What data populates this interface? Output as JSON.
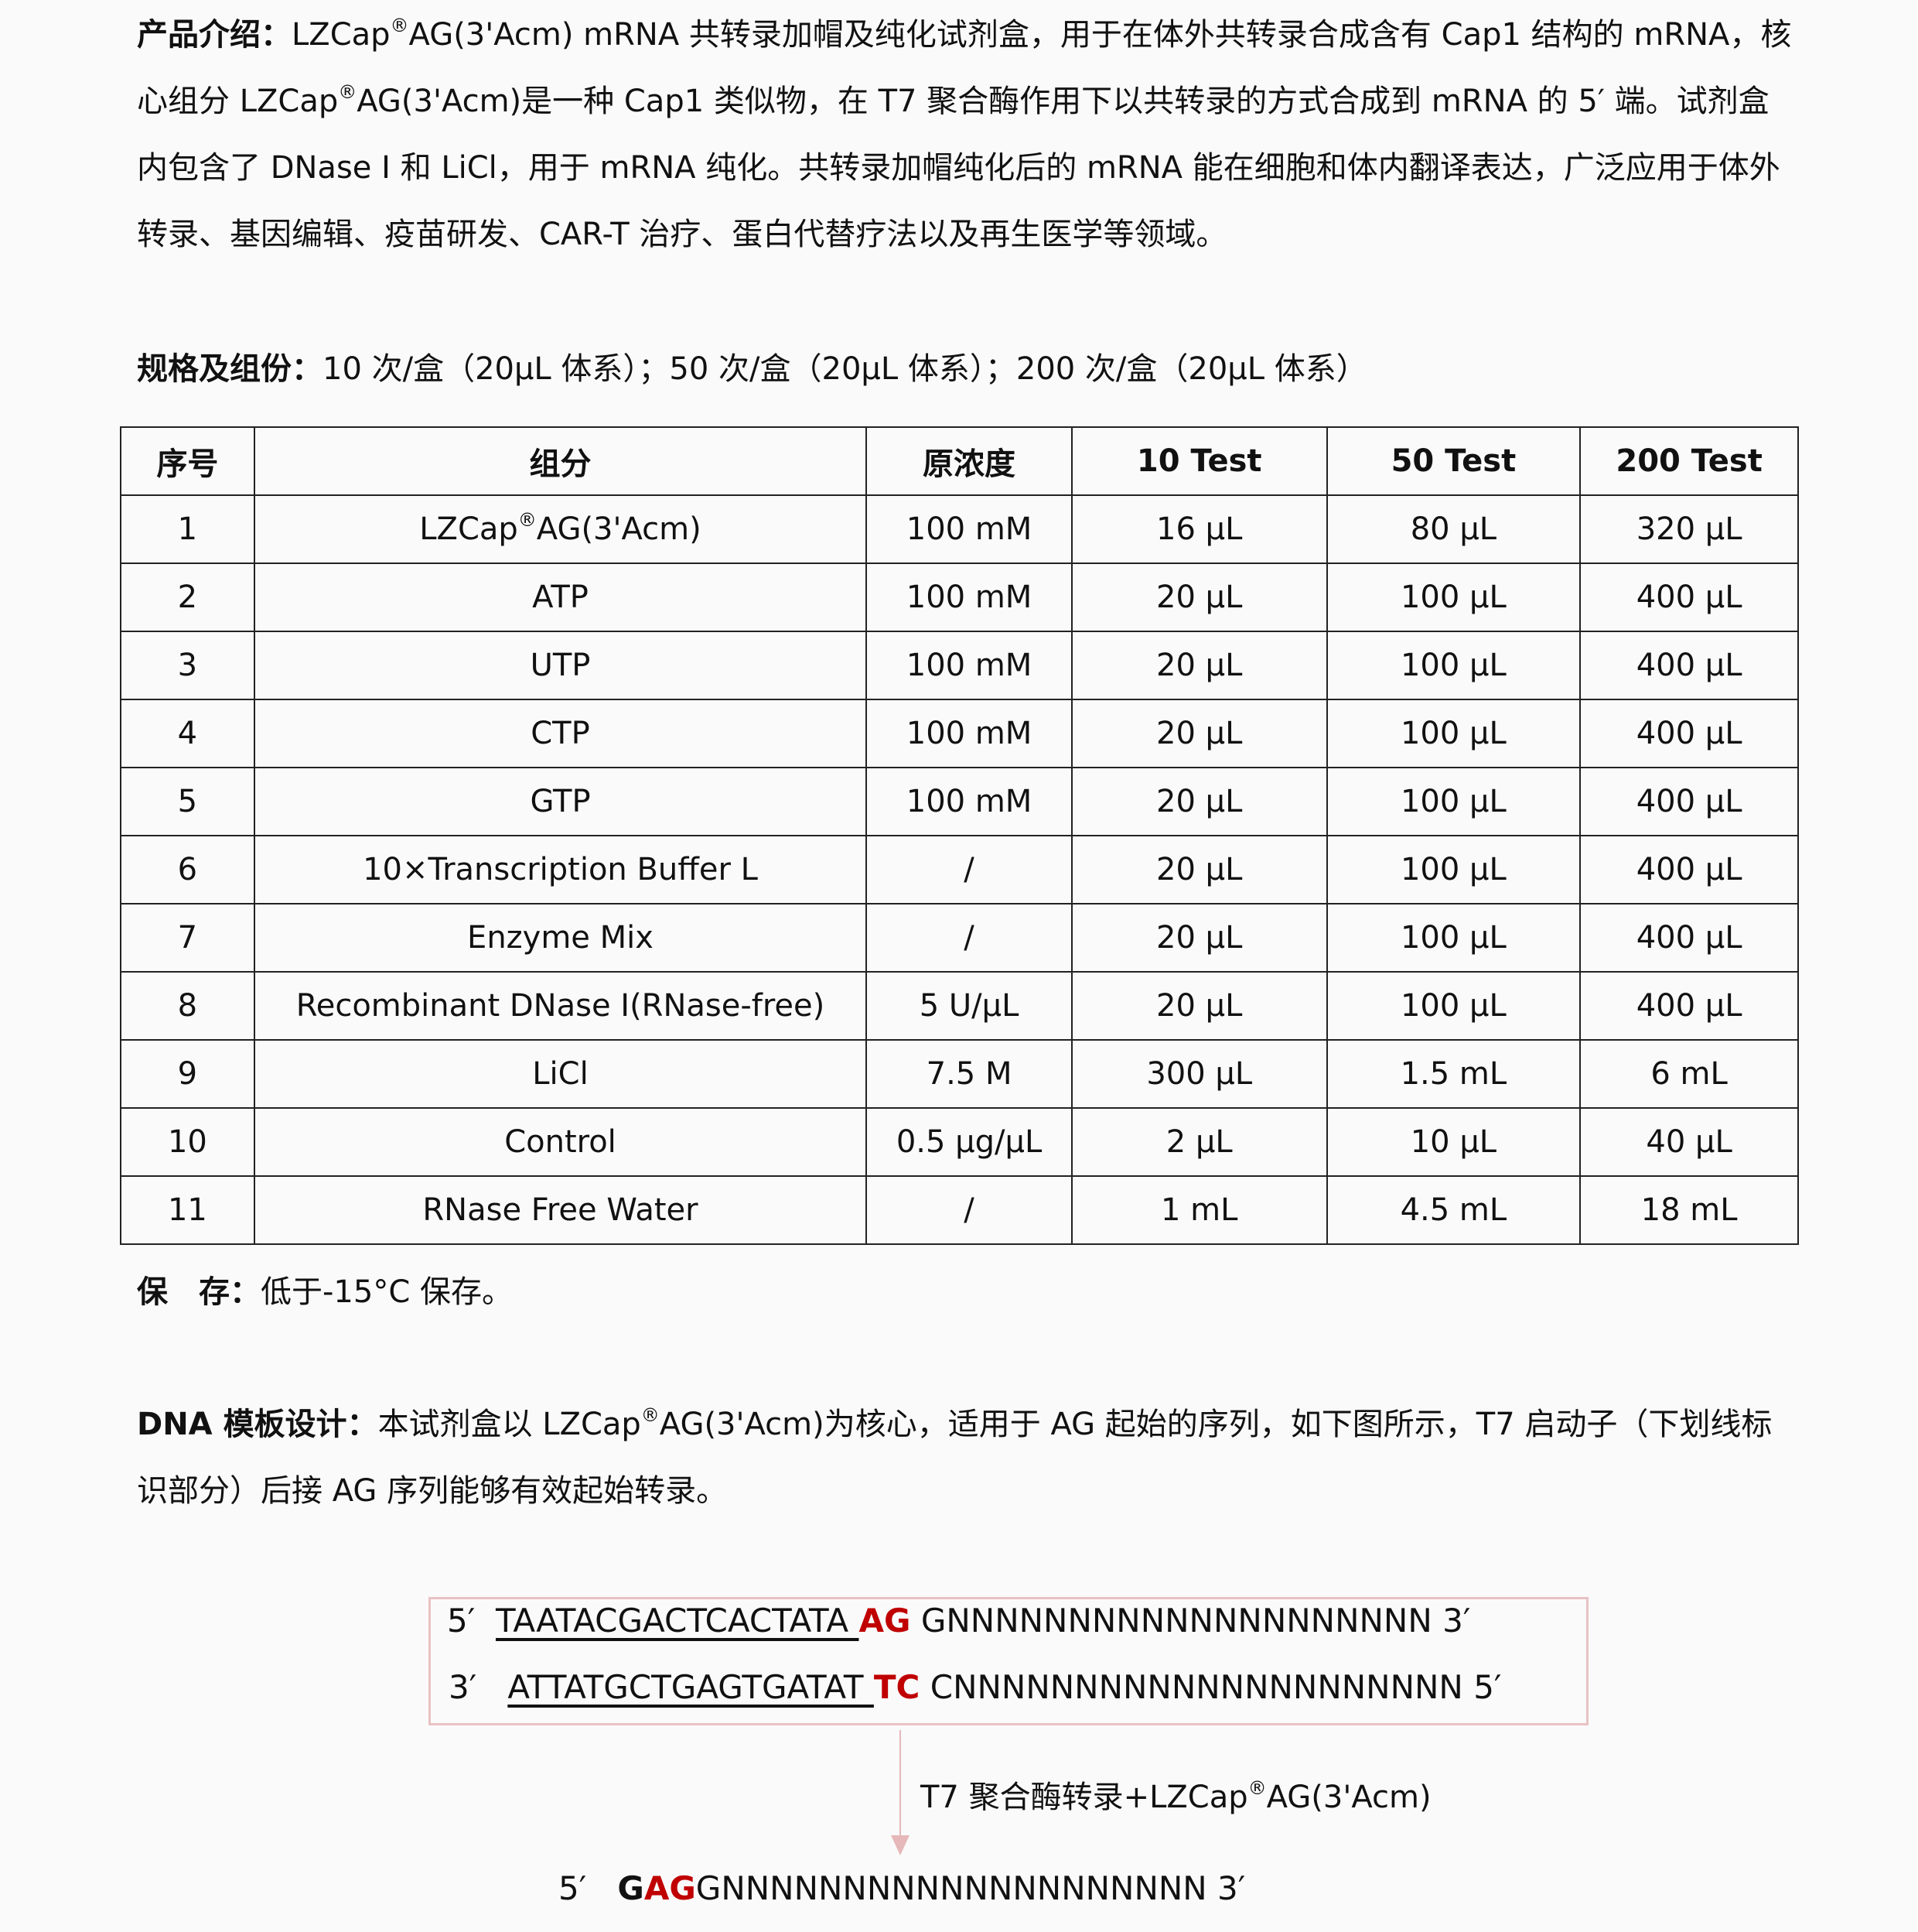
{
  "intro": {
    "label": "产品介绍：",
    "text_1": "LZCap",
    "reg": "®",
    "text_2": "AG(3'Acm) mRNA 共转录加帽及纯化试剂盒，用于在体外共转录合成含有 Cap1 结构的 mRNA，核心组分 LZCap",
    "text_3": "AG(3'Acm)是一种 Cap1 类似物，在 T7 聚合酶作用下以共转录的方式合成到 mRNA 的 5′ 端。试剂盒内包含了 DNase I 和 LiCl，用于 mRNA 纯化。共转录加帽纯化后的 mRNA 能在细胞和体内翻译表达，广泛应用于体外转录、基因编辑、疫苗研发、CAR-T 治疗、蛋白代替疗法以及再生医学等领域。"
  },
  "spec": {
    "label": "规格及组份：",
    "text": "10 次/盒（20μL 体系）；50 次/盒（20μL 体系）；200 次/盒（20μL 体系）"
  },
  "table": {
    "headers": [
      "序号",
      "组分",
      "原浓度",
      "10 Test",
      "50 Test",
      "200 Test"
    ],
    "rows": [
      [
        "1",
        "LZCap®AG(3'Acm)",
        "100 mM",
        "16 μL",
        "80 μL",
        "320 μL"
      ],
      [
        "2",
        "ATP",
        "100 mM",
        "20 μL",
        "100 μL",
        "400 μL"
      ],
      [
        "3",
        "UTP",
        "100 mM",
        "20 μL",
        "100 μL",
        "400 μL"
      ],
      [
        "4",
        "CTP",
        "100 mM",
        "20 μL",
        "100 μL",
        "400 μL"
      ],
      [
        "5",
        "GTP",
        "100 mM",
        "20 μL",
        "100 μL",
        "400 μL"
      ],
      [
        "6",
        "10×Transcription Buffer L",
        "/",
        "20 μL",
        "100 μL",
        "400 μL"
      ],
      [
        "7",
        "Enzyme Mix",
        "/",
        "20 μL",
        "100 μL",
        "400 μL"
      ],
      [
        "8",
        "Recombinant DNase I(RNase-free)",
        "5 U/μL",
        "20 μL",
        "100 μL",
        "400 μL"
      ],
      [
        "9",
        "LiCl",
        "7.5 M",
        "300 μL",
        "1.5 mL",
        "6 mL"
      ],
      [
        "10",
        "Control",
        "0.5 μg/μL",
        "2 μL",
        "10 μL",
        "40 μL"
      ],
      [
        "11",
        "RNase Free Water",
        "/",
        "1 mL",
        "4.5 mL",
        "18 mL"
      ]
    ]
  },
  "storage": {
    "label": "保　存：",
    "text": "低于-15°C 保存。"
  },
  "dna": {
    "label": "DNA 模板设计：",
    "text_1": "本试剂盒以 LZCap",
    "reg": "®",
    "text_2": "AG(3'Acm)为核心，适用于 AG 起始的序列，如下图所示，T7 启动子（下划线标识部分）后接 AG 序列能够有效起始转录。",
    "top_strand": {
      "end5": "5′",
      "promoter": "TAATACGACTCACTATA ",
      "highlight": "AG",
      "rest": " GNNNNNNNNNNNNNNNNNNNN 3′"
    },
    "bottom_strand": {
      "end3": "3′",
      "promoter": "ATTATGCTGAGTGATAT ",
      "highlight": "TC",
      "rest": " CNNNNNNNNNNNNNNNNNNNNN 5′"
    },
    "reaction_1": "T7 聚合酶转录+LZCap",
    "reaction_reg": "®",
    "reaction_2": "AG(3'Acm)",
    "product": {
      "end5": "5′",
      "g": "G",
      "highlight": "AG",
      "rest": "GNNNNNNNNNNNNNNNNNNNN 3′"
    }
  },
  "colors": {
    "highlight": "#c00000",
    "box_border": "#e9c2c4"
  }
}
